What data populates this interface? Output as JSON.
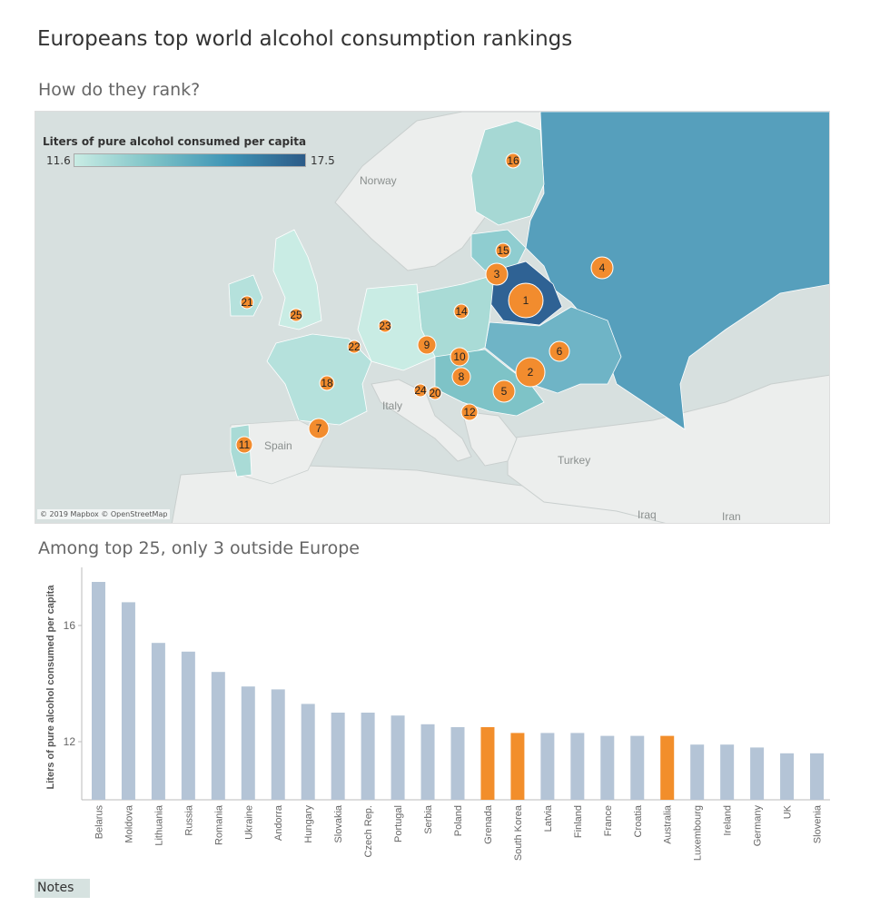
{
  "title": "Europeans top world alcohol consumption rankings",
  "map_section": {
    "subtitle": "How do they rank?",
    "legend": {
      "title": "Liters of pure alcohol consumed per capita",
      "min": "11.6",
      "max": "17.5"
    },
    "credit": "© 2019 Mapbox © OpenStreetMap",
    "place_labels": [
      "Norway",
      "Italy",
      "Spain",
      "Turkey",
      "Iraq",
      "Iran"
    ],
    "rank_markers": [
      "1",
      "2",
      "3",
      "4",
      "5",
      "6",
      "7",
      "8",
      "9",
      "10",
      "11",
      "12",
      "14",
      "15",
      "16",
      "18",
      "20",
      "21",
      "22",
      "23",
      "24",
      "25"
    ],
    "colors": {
      "ocean": "#d7e0df",
      "land": "#eceeed",
      "marker": "#f28c2e"
    }
  },
  "bar_section": {
    "subtitle": "Among top 25, only 3 outside Europe"
  },
  "chart_data": {
    "type": "bar",
    "ylabel": "Liters of pure alcohol consumed per capita",
    "ylim": [
      10,
      18
    ],
    "yticks": [
      12,
      16
    ],
    "grid": false,
    "categories": [
      "Belarus",
      "Moldova",
      "Lithuania",
      "Russia",
      "Romania",
      "Ukraine",
      "Andorra",
      "Hungary",
      "Slovakia",
      "Czech Rep.",
      "Portugal",
      "Serbia",
      "Poland",
      "Grenada",
      "South Korea",
      "Latvia",
      "Finland",
      "France",
      "Croatia",
      "Australia",
      "Luxembourg",
      "Ireland",
      "Germany",
      "UK",
      "Slovenia"
    ],
    "values": [
      17.5,
      16.8,
      15.4,
      15.1,
      14.4,
      13.9,
      13.8,
      13.3,
      13.0,
      13.0,
      12.9,
      12.6,
      12.5,
      12.5,
      12.3,
      12.3,
      12.3,
      12.2,
      12.2,
      12.2,
      11.9,
      11.9,
      11.8,
      11.6,
      11.6
    ],
    "highlight": [
      false,
      false,
      false,
      false,
      false,
      false,
      false,
      false,
      false,
      false,
      false,
      false,
      false,
      true,
      true,
      false,
      false,
      false,
      false,
      true,
      false,
      false,
      false,
      false,
      false
    ],
    "colors": {
      "europe": "#b4c4d6",
      "outside": "#f28e2b",
      "axis": "#bbbbbb",
      "text": "#666666"
    }
  },
  "notes_label": "Notes"
}
